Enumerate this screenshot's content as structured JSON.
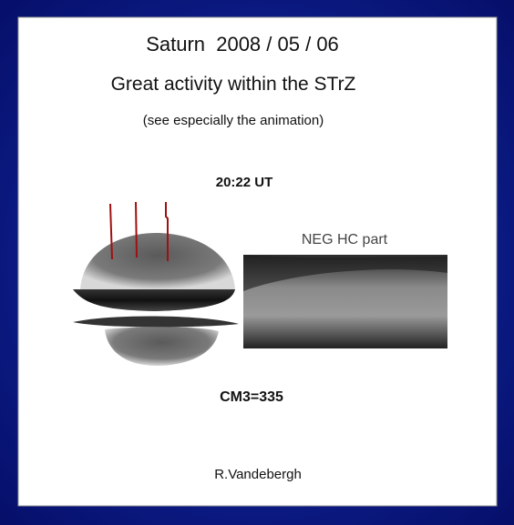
{
  "header": {
    "title": "Saturn  2008 / 05 / 06",
    "subtitle": "Great activity within the STrZ",
    "note": "(see especially the animation)"
  },
  "image": {
    "time": "20:22 UT",
    "inset_label": "NEG HC part",
    "cm3": "CM3=335"
  },
  "footer": {
    "author": "R.Vandebergh"
  }
}
